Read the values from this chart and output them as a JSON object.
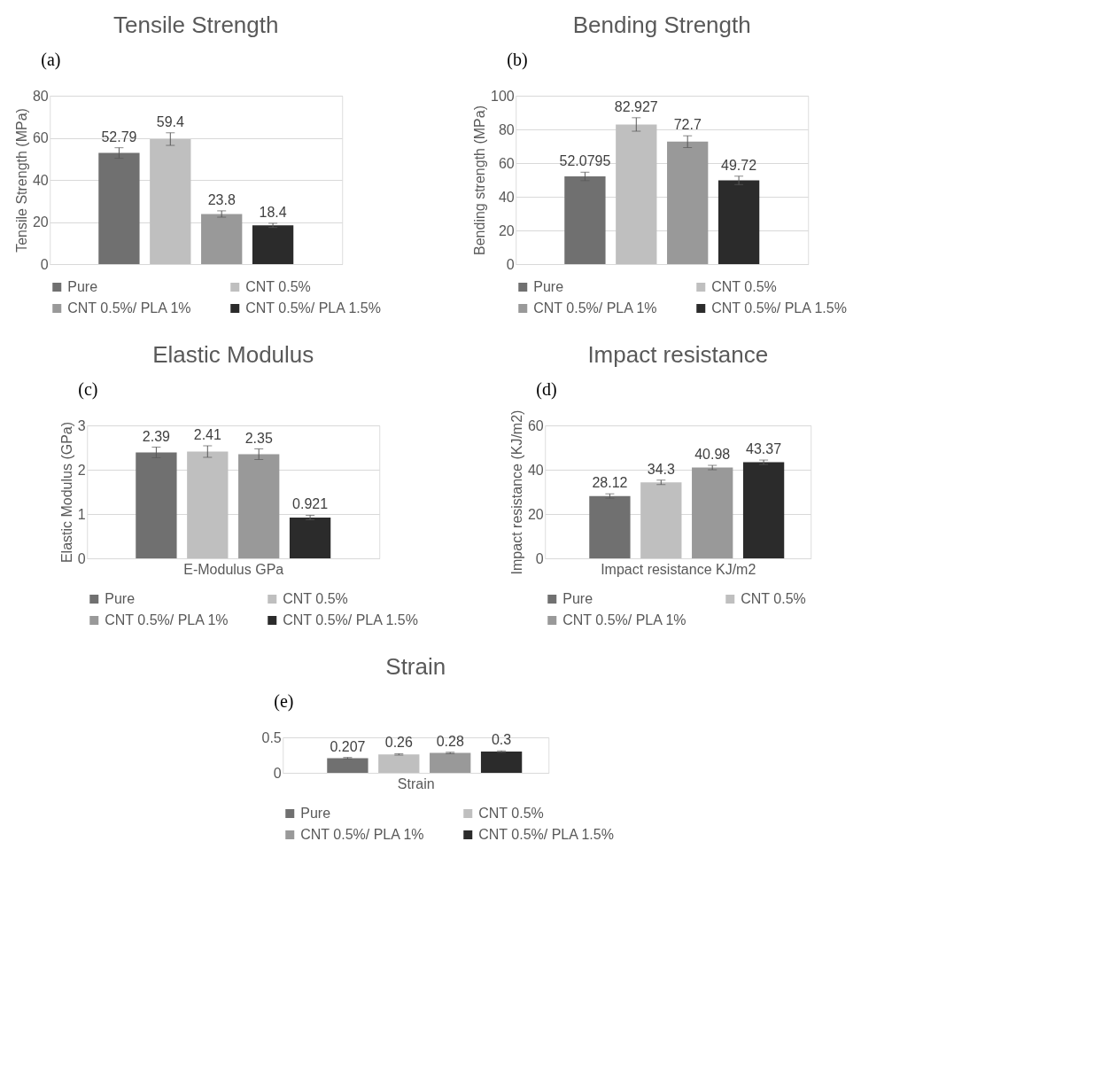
{
  "chart_data": [
    {
      "type": "bar",
      "title": "Tensile Strength",
      "ylabel": "Tensile Strength (MPa)",
      "annotations": [
        "(a)"
      ],
      "categories": [
        null
      ],
      "ylim": [
        0,
        80
      ],
      "yticks": [
        0,
        20,
        40,
        60,
        80
      ],
      "grid": "y",
      "legend": "bottom",
      "data_labels": true,
      "series": [
        {
          "name": "Pure",
          "color": "#707070",
          "values": [
            52.79
          ],
          "errors": [
            2.5
          ]
        },
        {
          "name": "CNT 0.5%",
          "color": "#bfbfbf",
          "values": [
            59.4
          ],
          "errors": [
            3
          ]
        },
        {
          "name": "CNT 0.5%/ PLA 1%",
          "color": "#999999",
          "values": [
            23.8
          ],
          "errors": [
            1.5
          ]
        },
        {
          "name": "CNT 0.5%/ PLA 1.5%",
          "color": "#2b2b2b",
          "values": [
            18.4
          ],
          "errors": [
            1
          ]
        }
      ]
    },
    {
      "type": "bar",
      "title": "Bending Strength",
      "ylabel": "Bending strength (MPa)",
      "annotations": [
        "(b)"
      ],
      "categories": [
        null
      ],
      "ylim": [
        0,
        100
      ],
      "yticks": [
        0,
        20,
        40,
        60,
        80,
        100
      ],
      "grid": "y",
      "legend": "bottom",
      "data_labels": true,
      "series": [
        {
          "name": "Pure",
          "color": "#707070",
          "values": [
            52.0795
          ],
          "errors": [
            2.5
          ]
        },
        {
          "name": "CNT 0.5%",
          "color": "#bfbfbf",
          "values": [
            82.927
          ],
          "errors": [
            4
          ]
        },
        {
          "name": "CNT 0.5%/ PLA 1%",
          "color": "#999999",
          "values": [
            72.7
          ],
          "errors": [
            3.5
          ]
        },
        {
          "name": "CNT 0.5%/ PLA 1.5%",
          "color": "#2b2b2b",
          "values": [
            49.72
          ],
          "errors": [
            2.5
          ]
        }
      ]
    },
    {
      "type": "bar",
      "title": "Elastic Modulus",
      "ylabel": "Elastic Modulus (GPa)",
      "xlabel": "E-Modulus GPa",
      "annotations": [
        "(c)"
      ],
      "categories": [
        null
      ],
      "ylim": [
        0,
        3
      ],
      "yticks": [
        0,
        1,
        2,
        3
      ],
      "grid": "y",
      "legend": "bottom",
      "data_labels": true,
      "series": [
        {
          "name": "Pure",
          "color": "#707070",
          "values": [
            2.39
          ],
          "errors": [
            0.12
          ]
        },
        {
          "name": "CNT 0.5%",
          "color": "#bfbfbf",
          "values": [
            2.41
          ],
          "errors": [
            0.13
          ]
        },
        {
          "name": "CNT 0.5%/ PLA 1%",
          "color": "#999999",
          "values": [
            2.35
          ],
          "errors": [
            0.12
          ]
        },
        {
          "name": "CNT 0.5%/ PLA 1.5%",
          "color": "#2b2b2b",
          "values": [
            0.921
          ],
          "errors": [
            0.05
          ]
        }
      ]
    },
    {
      "type": "bar",
      "title": "Impact resistance",
      "ylabel": "Impact resistance (KJ/m2)",
      "xlabel": "Impact resistance KJ/m2",
      "annotations": [
        "(d)"
      ],
      "categories": [
        null
      ],
      "ylim": [
        0,
        60
      ],
      "yticks": [
        0,
        20,
        40,
        60
      ],
      "grid": "y",
      "legend": "bottom",
      "data_labels": true,
      "series": [
        {
          "name": "Pure",
          "color": "#707070",
          "values": [
            28.12
          ],
          "errors": [
            1
          ]
        },
        {
          "name": "CNT 0.5%",
          "color": "#bfbfbf",
          "values": [
            34.3
          ],
          "errors": [
            1
          ]
        },
        {
          "name": "CNT 0.5%/ PLA 1%",
          "color": "#999999",
          "values": [
            40.98
          ],
          "errors": [
            1
          ]
        },
        {
          "color": "#2b2b2b",
          "values": [
            43.37
          ],
          "errors": [
            1
          ]
        }
      ]
    },
    {
      "type": "bar",
      "title": "Strain",
      "xlabel": "Strain",
      "annotations": [
        "(e)"
      ],
      "categories": [
        null
      ],
      "ylim": [
        0,
        0.5
      ],
      "yticks": [
        0,
        0.5
      ],
      "grid": "y",
      "legend": "bottom",
      "data_labels": true,
      "series": [
        {
          "name": "Pure",
          "color": "#707070",
          "values": [
            0.207
          ],
          "errors": [
            0.01
          ]
        },
        {
          "name": "CNT 0.5%",
          "color": "#bfbfbf",
          "values": [
            0.26
          ],
          "errors": [
            0.01
          ]
        },
        {
          "name": "CNT 0.5%/ PLA 1%",
          "color": "#999999",
          "values": [
            0.28
          ],
          "errors": [
            0.01
          ]
        },
        {
          "name": "CNT 0.5%/ PLA 1.5%",
          "color": "#2b2b2b",
          "values": [
            0.3
          ],
          "errors": [
            0.01
          ]
        }
      ]
    }
  ]
}
